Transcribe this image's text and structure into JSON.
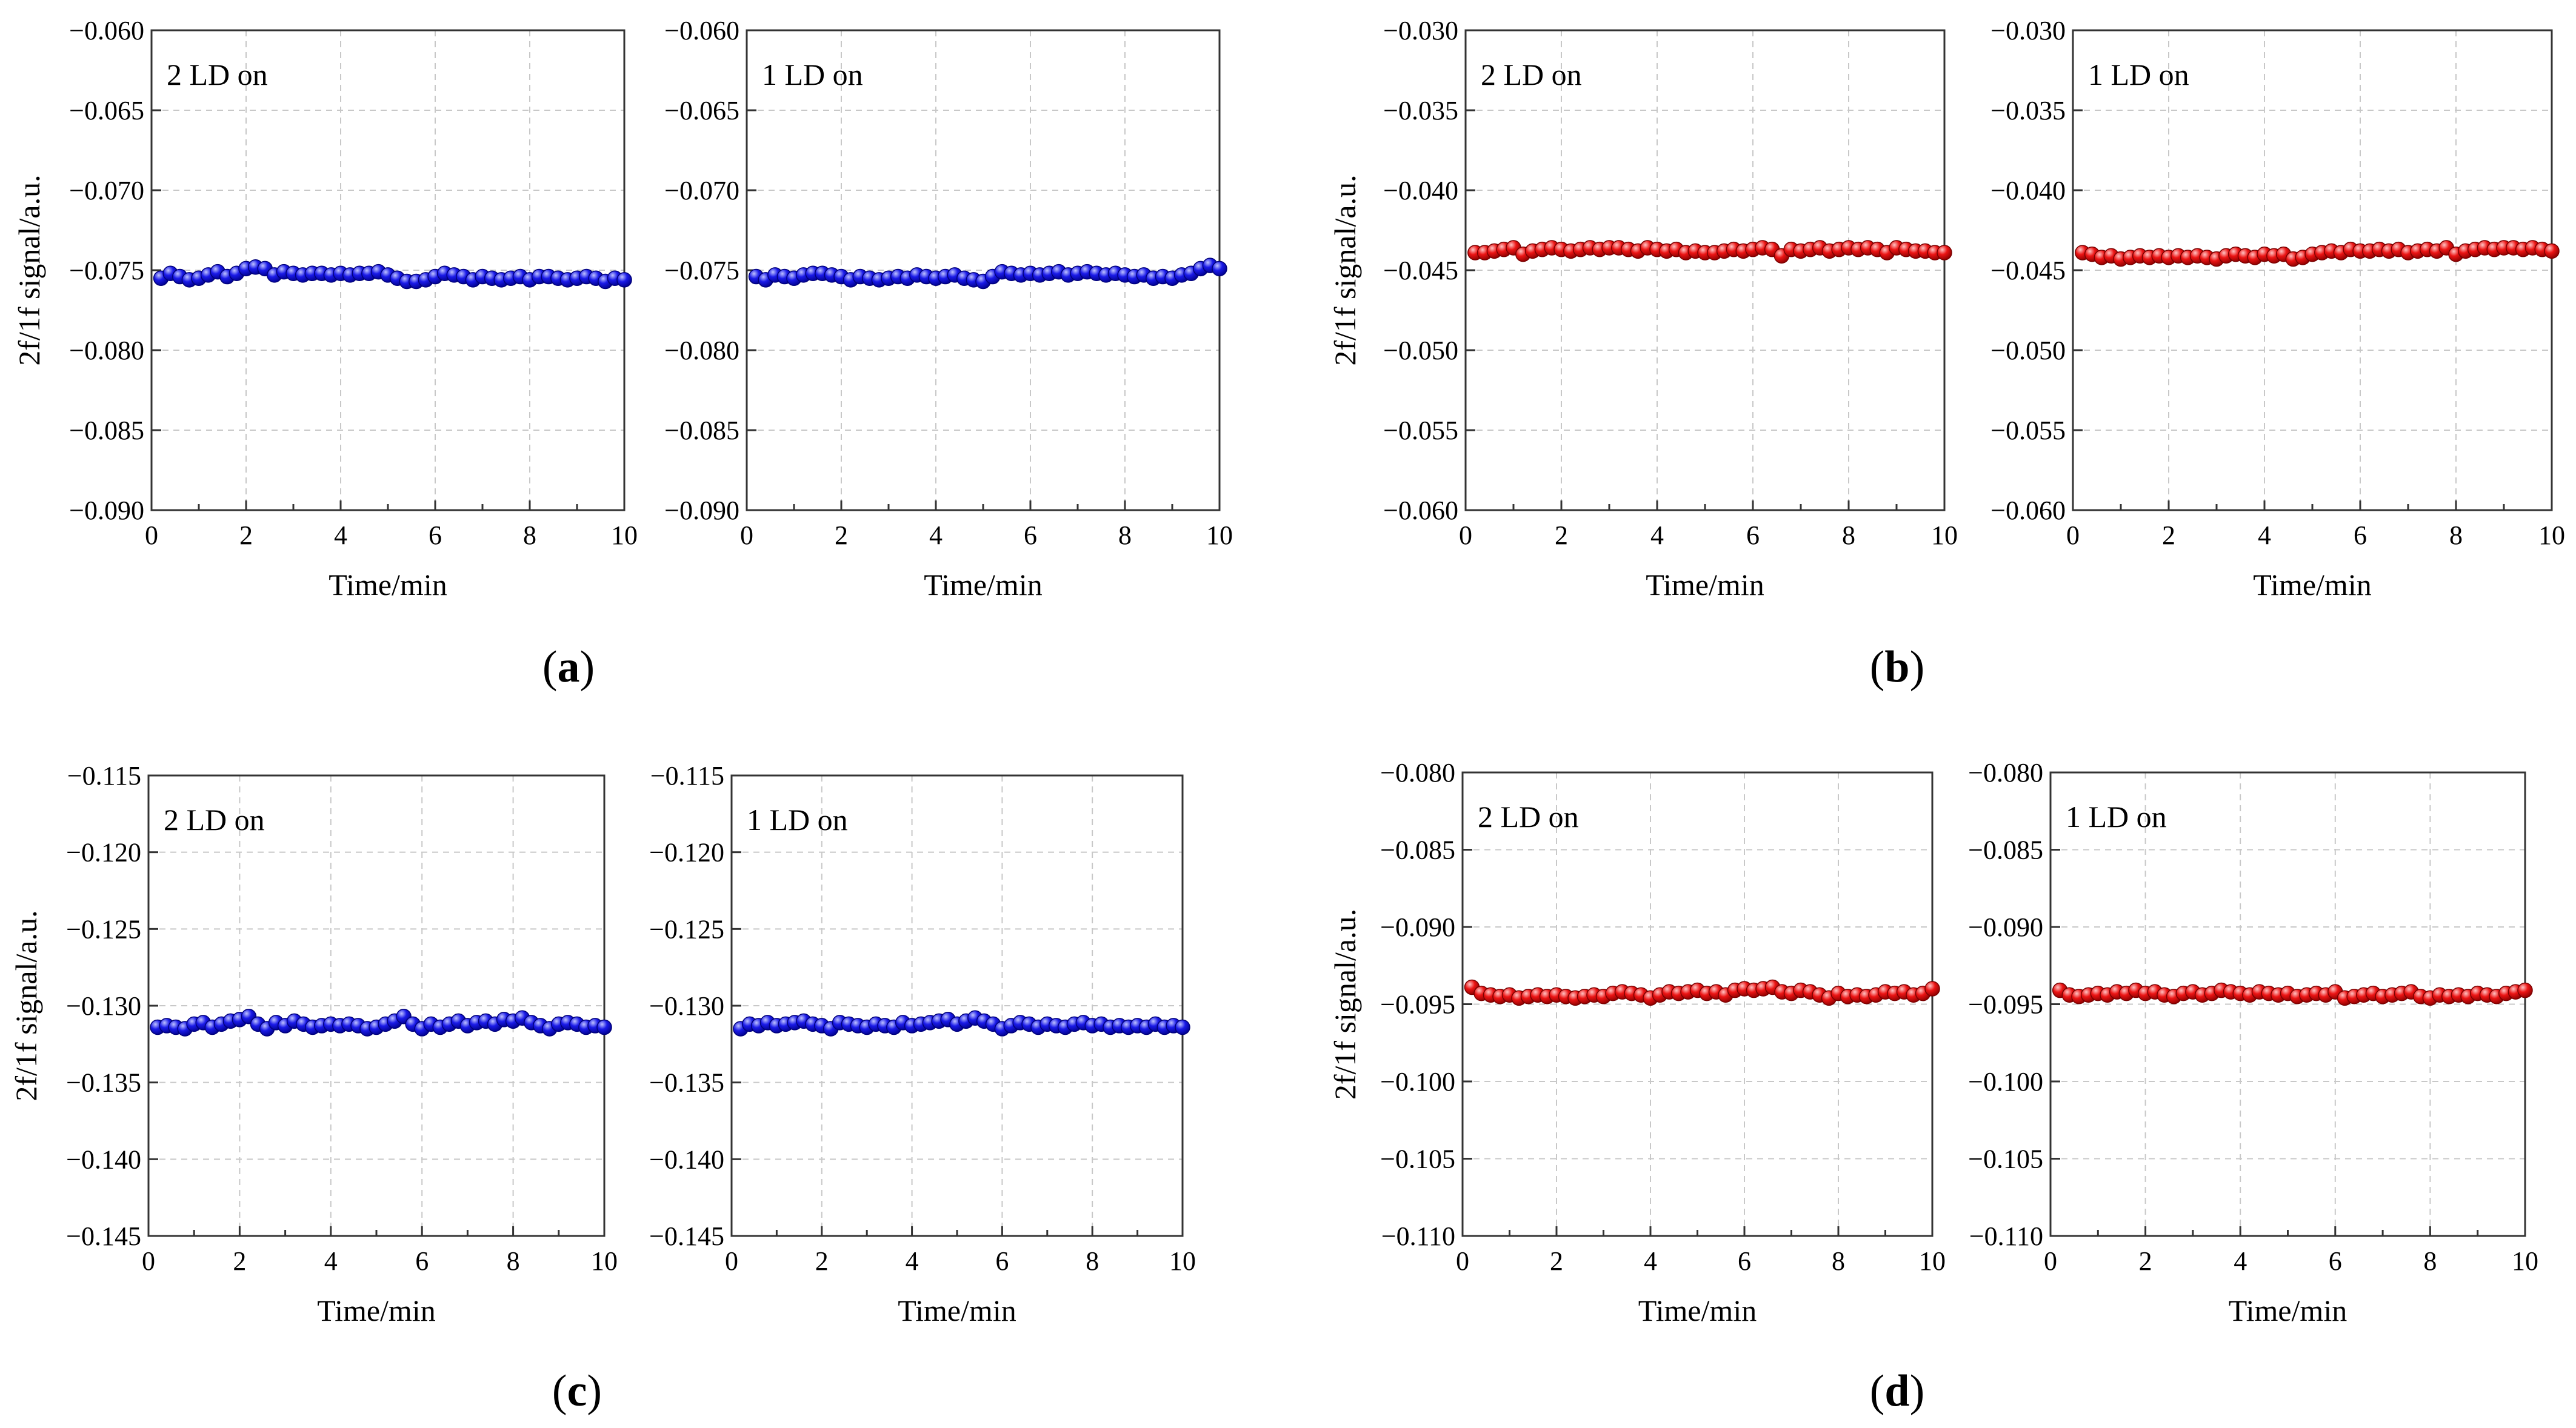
{
  "figure": {
    "axis_common": {
      "xlabel": "Time/min",
      "ylabel": "2f/1f signal/a.u.",
      "xlim": [
        0,
        10
      ],
      "xticks": [
        0,
        2,
        4,
        6,
        8,
        10
      ]
    },
    "colors": {
      "blue": "#1010e6",
      "red": "#e61010"
    }
  },
  "chart_data": [
    {
      "type": "scatter",
      "panel": "a",
      "caption": "(a)",
      "color": "blue",
      "ylim": [
        -0.09,
        -0.06
      ],
      "ystep": 0.005,
      "yticks": [
        "−0.060",
        "−0.065",
        "−0.070",
        "−0.075",
        "−0.080",
        "−0.085",
        "−0.090"
      ],
      "subplots": [
        {
          "label": "2 LD on",
          "show_ylabel": true,
          "x": [
            0.2,
            0.4,
            0.6,
            0.8,
            1,
            1.2,
            1.4,
            1.6,
            1.8,
            2,
            2.2,
            2.4,
            2.6,
            2.8,
            3,
            3.2,
            3.4,
            3.6,
            3.8,
            4,
            4.2,
            4.4,
            4.6,
            4.8,
            5,
            5.2,
            5.4,
            5.6,
            5.8,
            6,
            6.2,
            6.4,
            6.6,
            6.8,
            7,
            7.2,
            7.4,
            7.6,
            7.8,
            8,
            8.2,
            8.4,
            8.6,
            8.8,
            9,
            9.2,
            9.4,
            9.6,
            9.8,
            10
          ],
          "y": [
            -0.0755,
            -0.0752,
            -0.0754,
            -0.0756,
            -0.0755,
            -0.0753,
            -0.0751,
            -0.0754,
            -0.0752,
            -0.0749,
            -0.0748,
            -0.0749,
            -0.0753,
            -0.0751,
            -0.0752,
            -0.0753,
            -0.0752,
            -0.0752,
            -0.0753,
            -0.0752,
            -0.0753,
            -0.0752,
            -0.0752,
            -0.0751,
            -0.0753,
            -0.0755,
            -0.0757,
            -0.0757,
            -0.0756,
            -0.0754,
            -0.0752,
            -0.0753,
            -0.0754,
            -0.0756,
            -0.0754,
            -0.0755,
            -0.0756,
            -0.0755,
            -0.0754,
            -0.0756,
            -0.0754,
            -0.0754,
            -0.0755,
            -0.0756,
            -0.0755,
            -0.0754,
            -0.0755,
            -0.0757,
            -0.0755,
            -0.0756
          ]
        },
        {
          "label": "1 LD on",
          "show_ylabel": false,
          "x": [
            0.2,
            0.4,
            0.6,
            0.8,
            1,
            1.2,
            1.4,
            1.6,
            1.8,
            2,
            2.2,
            2.4,
            2.6,
            2.8,
            3,
            3.2,
            3.4,
            3.6,
            3.8,
            4,
            4.2,
            4.4,
            4.6,
            4.8,
            5,
            5.2,
            5.4,
            5.6,
            5.8,
            6,
            6.2,
            6.4,
            6.6,
            6.8,
            7,
            7.2,
            7.4,
            7.6,
            7.8,
            8,
            8.2,
            8.4,
            8.6,
            8.8,
            9,
            9.2,
            9.4,
            9.6,
            9.8,
            10
          ],
          "y": [
            -0.0754,
            -0.0756,
            -0.0753,
            -0.0754,
            -0.0755,
            -0.0753,
            -0.0752,
            -0.0752,
            -0.0753,
            -0.0754,
            -0.0756,
            -0.0754,
            -0.0755,
            -0.0756,
            -0.0755,
            -0.0754,
            -0.0755,
            -0.0753,
            -0.0754,
            -0.0755,
            -0.0754,
            -0.0753,
            -0.0755,
            -0.0756,
            -0.0757,
            -0.0754,
            -0.0751,
            -0.0752,
            -0.0753,
            -0.0752,
            -0.0753,
            -0.0752,
            -0.0751,
            -0.0753,
            -0.0752,
            -0.0751,
            -0.0752,
            -0.0753,
            -0.0752,
            -0.0753,
            -0.0754,
            -0.0753,
            -0.0755,
            -0.0754,
            -0.0755,
            -0.0753,
            -0.0752,
            -0.0749,
            -0.0747,
            -0.0749
          ]
        }
      ]
    },
    {
      "type": "scatter",
      "panel": "b",
      "caption": "(b)",
      "color": "red",
      "ylim": [
        -0.06,
        -0.03
      ],
      "ystep": 0.005,
      "yticks": [
        "−0.030",
        "−0.035",
        "−0.040",
        "−0.045",
        "−0.050",
        "−0.055",
        "−0.060"
      ],
      "subplots": [
        {
          "label": "2 LD on",
          "show_ylabel": true,
          "x": [
            0.2,
            0.4,
            0.6,
            0.8,
            1,
            1.2,
            1.4,
            1.6,
            1.8,
            2,
            2.2,
            2.4,
            2.6,
            2.8,
            3,
            3.2,
            3.4,
            3.6,
            3.8,
            4,
            4.2,
            4.4,
            4.6,
            4.8,
            5,
            5.2,
            5.4,
            5.6,
            5.8,
            6,
            6.2,
            6.4,
            6.6,
            6.8,
            7,
            7.2,
            7.4,
            7.6,
            7.8,
            8,
            8.2,
            8.4,
            8.6,
            8.8,
            9,
            9.2,
            9.4,
            9.6,
            9.8,
            10
          ],
          "y": [
            -0.0439,
            -0.0439,
            -0.0438,
            -0.0437,
            -0.0436,
            -0.044,
            -0.0438,
            -0.0437,
            -0.0436,
            -0.0437,
            -0.0438,
            -0.0437,
            -0.0436,
            -0.0437,
            -0.0436,
            -0.0436,
            -0.0437,
            -0.0438,
            -0.0436,
            -0.0437,
            -0.0438,
            -0.0437,
            -0.0439,
            -0.0438,
            -0.0439,
            -0.0439,
            -0.0438,
            -0.0437,
            -0.0438,
            -0.0437,
            -0.0436,
            -0.0437,
            -0.0441,
            -0.0437,
            -0.0438,
            -0.0437,
            -0.0436,
            -0.0438,
            -0.0437,
            -0.0436,
            -0.0437,
            -0.0436,
            -0.0437,
            -0.0439,
            -0.0436,
            -0.0437,
            -0.0438,
            -0.0438,
            -0.0439,
            -0.0439
          ]
        },
        {
          "label": "1 LD on",
          "show_ylabel": false,
          "x": [
            0.2,
            0.4,
            0.6,
            0.8,
            1,
            1.2,
            1.4,
            1.6,
            1.8,
            2,
            2.2,
            2.4,
            2.6,
            2.8,
            3,
            3.2,
            3.4,
            3.6,
            3.8,
            4,
            4.2,
            4.4,
            4.6,
            4.8,
            5,
            5.2,
            5.4,
            5.6,
            5.8,
            6,
            6.2,
            6.4,
            6.6,
            6.8,
            7,
            7.2,
            7.4,
            7.6,
            7.8,
            8,
            8.2,
            8.4,
            8.6,
            8.8,
            9,
            9.2,
            9.4,
            9.6,
            9.8,
            10
          ],
          "y": [
            -0.0439,
            -0.044,
            -0.0442,
            -0.0441,
            -0.0443,
            -0.0442,
            -0.0441,
            -0.0442,
            -0.0441,
            -0.0442,
            -0.0441,
            -0.0442,
            -0.0441,
            -0.0442,
            -0.0443,
            -0.0441,
            -0.044,
            -0.0441,
            -0.0442,
            -0.044,
            -0.0441,
            -0.044,
            -0.0443,
            -0.0442,
            -0.044,
            -0.0439,
            -0.0438,
            -0.0439,
            -0.0437,
            -0.0438,
            -0.0438,
            -0.0437,
            -0.0438,
            -0.0437,
            -0.0439,
            -0.0438,
            -0.0437,
            -0.0438,
            -0.0436,
            -0.044,
            -0.0438,
            -0.0437,
            -0.0436,
            -0.0437,
            -0.0436,
            -0.0436,
            -0.0437,
            -0.0436,
            -0.0437,
            -0.0438
          ]
        }
      ]
    },
    {
      "type": "scatter",
      "panel": "c",
      "caption": "(c)",
      "color": "blue",
      "ylim": [
        -0.145,
        -0.115
      ],
      "ystep": 0.005,
      "yticks": [
        "−0.115",
        "−0.120",
        "−0.125",
        "−0.130",
        "−0.135",
        "−0.140",
        "−0.145"
      ],
      "subplots": [
        {
          "label": "2 LD on",
          "show_ylabel": true,
          "x": [
            0.2,
            0.4,
            0.6,
            0.8,
            1,
            1.2,
            1.4,
            1.6,
            1.8,
            2,
            2.2,
            2.4,
            2.6,
            2.8,
            3,
            3.2,
            3.4,
            3.6,
            3.8,
            4,
            4.2,
            4.4,
            4.6,
            4.8,
            5,
            5.2,
            5.4,
            5.6,
            5.8,
            6,
            6.2,
            6.4,
            6.6,
            6.8,
            7,
            7.2,
            7.4,
            7.6,
            7.8,
            8,
            8.2,
            8.4,
            8.6,
            8.8,
            9,
            9.2,
            9.4,
            9.6,
            9.8,
            10
          ],
          "y": [
            -0.1314,
            -0.1313,
            -0.1314,
            -0.1315,
            -0.1312,
            -0.1311,
            -0.1314,
            -0.1312,
            -0.131,
            -0.1309,
            -0.1307,
            -0.1312,
            -0.1315,
            -0.1311,
            -0.1313,
            -0.131,
            -0.1312,
            -0.1314,
            -0.1313,
            -0.1312,
            -0.1313,
            -0.1312,
            -0.1313,
            -0.1315,
            -0.1314,
            -0.1312,
            -0.131,
            -0.1307,
            -0.1312,
            -0.1315,
            -0.1312,
            -0.1314,
            -0.1312,
            -0.131,
            -0.1313,
            -0.1311,
            -0.131,
            -0.1312,
            -0.1309,
            -0.131,
            -0.1308,
            -0.1311,
            -0.1313,
            -0.1315,
            -0.1312,
            -0.1311,
            -0.1312,
            -0.1314,
            -0.1313,
            -0.1314
          ]
        },
        {
          "label": "1 LD on",
          "show_ylabel": false,
          "x": [
            0.2,
            0.4,
            0.6,
            0.8,
            1,
            1.2,
            1.4,
            1.6,
            1.8,
            2,
            2.2,
            2.4,
            2.6,
            2.8,
            3,
            3.2,
            3.4,
            3.6,
            3.8,
            4,
            4.2,
            4.4,
            4.6,
            4.8,
            5,
            5.2,
            5.4,
            5.6,
            5.8,
            6,
            6.2,
            6.4,
            6.6,
            6.8,
            7,
            7.2,
            7.4,
            7.6,
            7.8,
            8,
            8.2,
            8.4,
            8.6,
            8.8,
            9,
            9.2,
            9.4,
            9.6,
            9.8,
            10
          ],
          "y": [
            -0.1315,
            -0.1312,
            -0.1313,
            -0.1311,
            -0.1313,
            -0.1312,
            -0.1311,
            -0.131,
            -0.1312,
            -0.1313,
            -0.1315,
            -0.1311,
            -0.1312,
            -0.1313,
            -0.1314,
            -0.1312,
            -0.1313,
            -0.1314,
            -0.1311,
            -0.1313,
            -0.1312,
            -0.1311,
            -0.131,
            -0.1309,
            -0.1312,
            -0.131,
            -0.1308,
            -0.131,
            -0.1312,
            -0.1315,
            -0.1313,
            -0.1311,
            -0.1312,
            -0.1314,
            -0.1312,
            -0.1313,
            -0.1314,
            -0.1312,
            -0.1311,
            -0.1313,
            -0.1312,
            -0.1314,
            -0.1313,
            -0.1314,
            -0.1313,
            -0.1314,
            -0.1312,
            -0.1314,
            -0.1313,
            -0.1314
          ]
        }
      ]
    },
    {
      "type": "scatter",
      "panel": "d",
      "caption": "(d)",
      "color": "red",
      "ylim": [
        -0.11,
        -0.08
      ],
      "ystep": 0.005,
      "yticks": [
        "−0.080",
        "−0.085",
        "−0.090",
        "−0.095",
        "−0.100",
        "−0.105",
        "−0.110"
      ],
      "subplots": [
        {
          "label": "2 LD on",
          "show_ylabel": true,
          "x": [
            0.2,
            0.4,
            0.6,
            0.8,
            1,
            1.2,
            1.4,
            1.6,
            1.8,
            2,
            2.2,
            2.4,
            2.6,
            2.8,
            3,
            3.2,
            3.4,
            3.6,
            3.8,
            4,
            4.2,
            4.4,
            4.6,
            4.8,
            5,
            5.2,
            5.4,
            5.6,
            5.8,
            6,
            6.2,
            6.4,
            6.6,
            6.8,
            7,
            7.2,
            7.4,
            7.6,
            7.8,
            8,
            8.2,
            8.4,
            8.6,
            8.8,
            9,
            9.2,
            9.4,
            9.6,
            9.8,
            10
          ],
          "y": [
            -0.0939,
            -0.0943,
            -0.0944,
            -0.0945,
            -0.0944,
            -0.0946,
            -0.0945,
            -0.0944,
            -0.0945,
            -0.0944,
            -0.0945,
            -0.0946,
            -0.0945,
            -0.0944,
            -0.0945,
            -0.0943,
            -0.0942,
            -0.0943,
            -0.0944,
            -0.0946,
            -0.0944,
            -0.0942,
            -0.0943,
            -0.0942,
            -0.0941,
            -0.0943,
            -0.0942,
            -0.0944,
            -0.0941,
            -0.094,
            -0.0941,
            -0.094,
            -0.0939,
            -0.0942,
            -0.0943,
            -0.0941,
            -0.0942,
            -0.0944,
            -0.0946,
            -0.0943,
            -0.0945,
            -0.0944,
            -0.0945,
            -0.0944,
            -0.0942,
            -0.0943,
            -0.0942,
            -0.0944,
            -0.0943,
            -0.094
          ]
        },
        {
          "label": "1 LD on",
          "show_ylabel": false,
          "x": [
            0.2,
            0.4,
            0.6,
            0.8,
            1,
            1.2,
            1.4,
            1.6,
            1.8,
            2,
            2.2,
            2.4,
            2.6,
            2.8,
            3,
            3.2,
            3.4,
            3.6,
            3.8,
            4,
            4.2,
            4.4,
            4.6,
            4.8,
            5,
            5.2,
            5.4,
            5.6,
            5.8,
            6,
            6.2,
            6.4,
            6.6,
            6.8,
            7,
            7.2,
            7.4,
            7.6,
            7.8,
            8,
            8.2,
            8.4,
            8.6,
            8.8,
            9,
            9.2,
            9.4,
            9.6,
            9.8,
            10
          ],
          "y": [
            -0.0941,
            -0.0944,
            -0.0945,
            -0.0944,
            -0.0943,
            -0.0944,
            -0.0942,
            -0.0943,
            -0.0941,
            -0.0943,
            -0.0942,
            -0.0944,
            -0.0945,
            -0.0943,
            -0.0942,
            -0.0944,
            -0.0943,
            -0.0941,
            -0.0942,
            -0.0943,
            -0.0944,
            -0.0942,
            -0.0943,
            -0.0944,
            -0.0943,
            -0.0945,
            -0.0944,
            -0.0943,
            -0.0944,
            -0.0942,
            -0.0946,
            -0.0945,
            -0.0944,
            -0.0943,
            -0.0945,
            -0.0944,
            -0.0943,
            -0.0942,
            -0.0945,
            -0.0946,
            -0.0944,
            -0.0945,
            -0.0944,
            -0.0945,
            -0.0943,
            -0.0944,
            -0.0945,
            -0.0943,
            -0.0942,
            -0.0941
          ]
        }
      ]
    }
  ]
}
